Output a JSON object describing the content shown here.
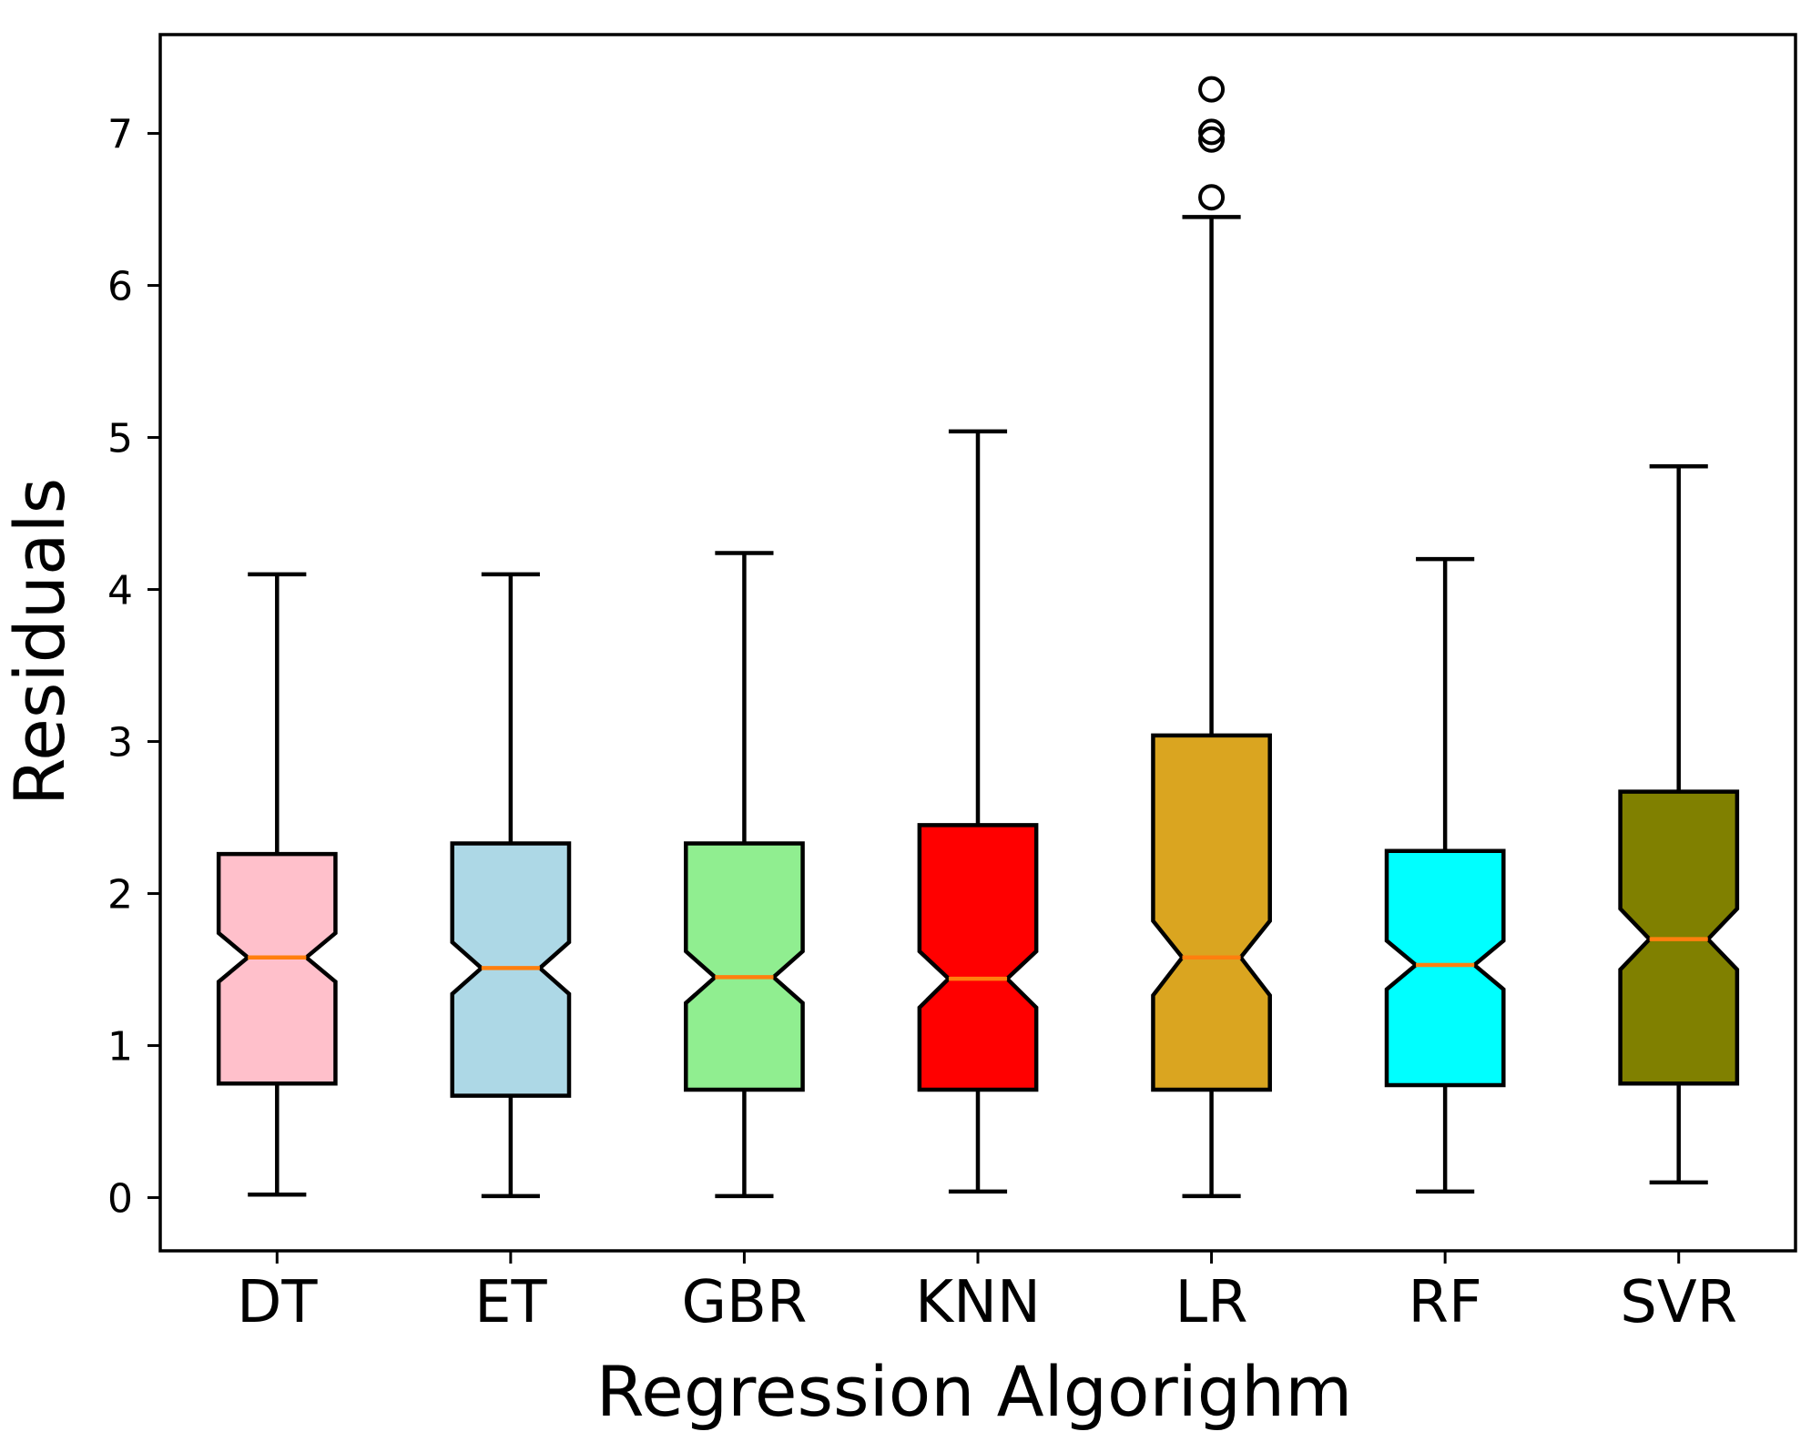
{
  "chart_data": {
    "type": "boxplot",
    "notched": true,
    "title": "",
    "xlabel": "Regression Algorighm",
    "ylabel": "Residuals",
    "ylim": [
      -0.35,
      7.65
    ],
    "yticks": [
      0,
      1,
      2,
      3,
      4,
      5,
      6,
      7
    ],
    "median_color": "#ff7f0e",
    "boxes": [
      {
        "name": "DT",
        "color": "#ffc0cb",
        "whisker_low": 0.02,
        "q1": 0.75,
        "median": 1.58,
        "q3": 2.26,
        "whisker_high": 4.1,
        "notch_low": 1.42,
        "notch_high": 1.74,
        "outliers": []
      },
      {
        "name": "ET",
        "color": "#add8e6",
        "whisker_low": 0.01,
        "q1": 0.67,
        "median": 1.51,
        "q3": 2.33,
        "whisker_high": 4.1,
        "notch_low": 1.34,
        "notch_high": 1.68,
        "outliers": []
      },
      {
        "name": "GBR",
        "color": "#90ee90",
        "whisker_low": 0.01,
        "q1": 0.71,
        "median": 1.45,
        "q3": 2.33,
        "whisker_high": 4.24,
        "notch_low": 1.28,
        "notch_high": 1.62,
        "outliers": []
      },
      {
        "name": "KNN",
        "color": "#ff0000",
        "whisker_low": 0.04,
        "q1": 0.71,
        "median": 1.44,
        "q3": 2.45,
        "whisker_high": 5.04,
        "notch_low": 1.25,
        "notch_high": 1.62,
        "outliers": []
      },
      {
        "name": "LR",
        "color": "#daa520",
        "whisker_low": 0.01,
        "q1": 0.71,
        "median": 1.58,
        "q3": 3.04,
        "whisker_high": 6.45,
        "notch_low": 1.33,
        "notch_high": 1.82,
        "outliers": [
          6.58,
          6.96,
          7.01,
          7.29
        ]
      },
      {
        "name": "RF",
        "color": "#00ffff",
        "whisker_low": 0.04,
        "q1": 0.74,
        "median": 1.53,
        "q3": 2.28,
        "whisker_high": 4.2,
        "notch_low": 1.37,
        "notch_high": 1.69,
        "outliers": []
      },
      {
        "name": "SVR",
        "color": "#808000",
        "whisker_low": 0.1,
        "q1": 0.75,
        "median": 1.7,
        "q3": 2.67,
        "whisker_high": 4.81,
        "notch_low": 1.5,
        "notch_high": 1.9,
        "outliers": []
      }
    ]
  }
}
